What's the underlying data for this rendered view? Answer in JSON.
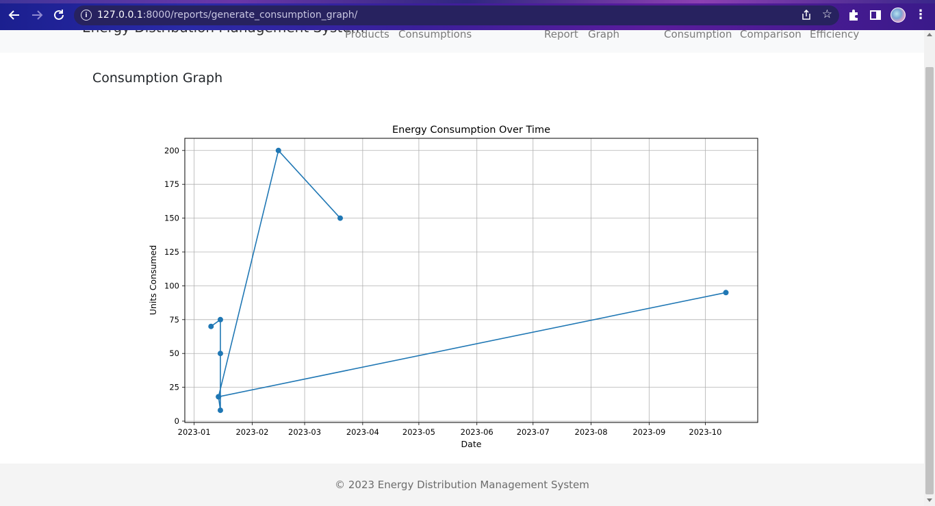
{
  "browser": {
    "url_host": "127.0.0.1",
    "url_rest": ":8000/reports/generate_consumption_graph/"
  },
  "header": {
    "brand": "Energy Distribution Management System",
    "nav": [
      "Products",
      "Consumptions",
      "Report",
      "Graph",
      "Consumption",
      "Comparison",
      "Efficiency"
    ]
  },
  "main": {
    "title": "Consumption Graph"
  },
  "footer": {
    "text": "© 2023 Energy Distribution Management System"
  },
  "chart_data": {
    "type": "line",
    "title": "Energy Consumption Over Time",
    "xlabel": "Date",
    "ylabel": "Units Consumed",
    "xlim": [
      "2022-12-27",
      "2023-10-29"
    ],
    "ylim": [
      -1,
      209
    ],
    "x_ticks": [
      "2023-01",
      "2023-02",
      "2023-03",
      "2023-04",
      "2023-05",
      "2023-06",
      "2023-07",
      "2023-08",
      "2023-09",
      "2023-10"
    ],
    "y_ticks": [
      0,
      25,
      50,
      75,
      100,
      125,
      150,
      175,
      200
    ],
    "grid": true,
    "color": "#1f77b4",
    "series": [
      {
        "x": [
          "2023-01-10",
          "2023-01-15",
          "2023-01-15",
          "2023-01-15",
          "2023-01-14",
          "2023-10-12",
          "2023-01-14",
          "2023-02-15",
          "2023-03-20"
        ],
        "y": [
          70,
          75,
          50,
          8,
          18,
          95,
          18,
          200,
          150
        ]
      }
    ]
  }
}
